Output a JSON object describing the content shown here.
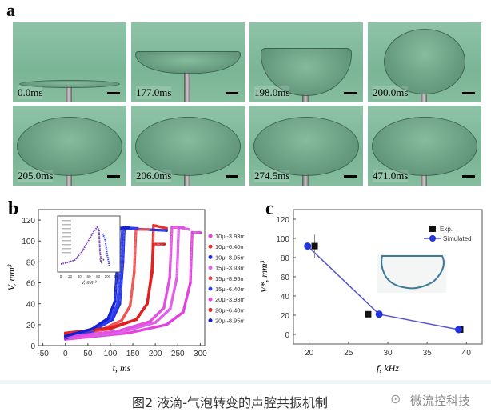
{
  "panel_a": {
    "label": "a",
    "frames": [
      {
        "time": "0.0ms",
        "shape": "flat-disk"
      },
      {
        "time": "177.0ms",
        "shape": "cone"
      },
      {
        "time": "198.0ms",
        "shape": "bowl"
      },
      {
        "time": "200.0ms",
        "shape": "bubble"
      },
      {
        "time": "205.0ms",
        "shape": "bubble-wide"
      },
      {
        "time": "206.0ms",
        "shape": "bubble-wide"
      },
      {
        "time": "274.5ms",
        "shape": "bubble-wide"
      },
      {
        "time": "471.0ms",
        "shape": "bubble-wide"
      }
    ],
    "background_color": "#7ab596"
  },
  "chart_data": [
    {
      "panel_label": "b",
      "type": "scatter",
      "xlabel": "t, ms",
      "ylabel": "V, mm³",
      "xlim": [
        -60,
        310
      ],
      "ylim": [
        0,
        130
      ],
      "xticks": [
        -50,
        0,
        50,
        100,
        150,
        200,
        250,
        300
      ],
      "yticks": [
        0,
        20,
        40,
        60,
        80,
        100,
        120
      ],
      "legend": "right-outside",
      "series": [
        {
          "name": "10μl-3.93rr",
          "color": "#e040e0",
          "marker": "circle",
          "x": [
            0,
            140,
            225,
            262,
            278,
            282,
            300
          ],
          "y": [
            6,
            12,
            20,
            32,
            60,
            108,
            108
          ]
        },
        {
          "name": "10μl-6.40rr",
          "color": "#e83030",
          "marker": "square",
          "x": [
            0,
            100,
            158,
            182,
            193,
            196,
            225
          ],
          "y": [
            10,
            16,
            25,
            40,
            70,
            115,
            112
          ]
        },
        {
          "name": "10μl-8.95rr",
          "color": "#2030e0",
          "marker": "square",
          "x": [
            0,
            65,
            105,
            121,
            128,
            131,
            225
          ],
          "y": [
            8,
            15,
            25,
            40,
            80,
            112,
            110
          ]
        },
        {
          "name": "15μl-3.93rr",
          "color": "#e060e8",
          "marker": "circle",
          "x": [
            0,
            125,
            200,
            233,
            248,
            252,
            275
          ],
          "y": [
            7,
            13,
            22,
            35,
            65,
            113,
            111
          ]
        },
        {
          "name": "15μl-8.95rr",
          "color": "#f05050",
          "marker": "triangle",
          "x": [
            0,
            80,
            125,
            144,
            153,
            157,
            185
          ],
          "y": [
            8,
            15,
            24,
            38,
            70,
            111,
            111
          ]
        },
        {
          "name": "15μl-6.40rr",
          "color": "#3040f0",
          "marker": "triangle",
          "x": [
            0,
            62,
            100,
            116,
            123,
            127,
            160
          ],
          "y": [
            7,
            14,
            25,
            40,
            80,
            113,
            112
          ]
        },
        {
          "name": "20μl-3.93rr",
          "color": "#e050e0",
          "marker": "circle",
          "x": [
            0,
            118,
            188,
            219,
            232,
            237,
            262
          ],
          "y": [
            8,
            14,
            23,
            36,
            65,
            113,
            113
          ]
        },
        {
          "name": "20μl-6.40rr",
          "color": "#e02020",
          "marker": "square",
          "x": [
            0,
            100,
            158,
            182,
            192,
            196,
            220
          ],
          "y": [
            12,
            17,
            25,
            40,
            70,
            97,
            97
          ]
        },
        {
          "name": "20μl-8.95rr",
          "color": "#1020d0",
          "marker": "star",
          "x": [
            0,
            60,
            95,
            110,
            116,
            120,
            140
          ],
          "y": [
            9,
            16,
            26,
            42,
            80,
            112,
            113
          ]
        }
      ],
      "inset": {
        "xlabel": "V, mm³",
        "xticks": [
          0,
          20,
          40,
          60,
          80,
          100,
          120
        ],
        "annotation": "V*"
      }
    },
    {
      "panel_label": "c",
      "type": "line",
      "xlabel": "f, kHz",
      "ylabel": "V*, mm³",
      "xlim": [
        18,
        42
      ],
      "ylim": [
        -10,
        130
      ],
      "xticks": [
        20,
        25,
        30,
        35,
        40
      ],
      "yticks": [
        0,
        20,
        40,
        60,
        80,
        100,
        120
      ],
      "legend": "top-right",
      "series": [
        {
          "name": "Exp.",
          "color": "#111111",
          "marker": "square",
          "x": [
            20.7,
            27.5,
            39.2
          ],
          "y": [
            92,
            21,
            5
          ],
          "yerr": [
            12,
            0,
            0
          ]
        },
        {
          "name": "Simulated",
          "color": "#2233dd",
          "line_color": "#5555cc",
          "marker": "circle",
          "x": [
            19.8,
            28.9,
            39.0
          ],
          "y": [
            92,
            21,
            5
          ]
        }
      ],
      "inset_shape_color": "#3a7a9a"
    }
  ],
  "caption": {
    "text": "图2  液滴-气泡转变的声腔共振机制",
    "watermark": "微流控科技"
  }
}
